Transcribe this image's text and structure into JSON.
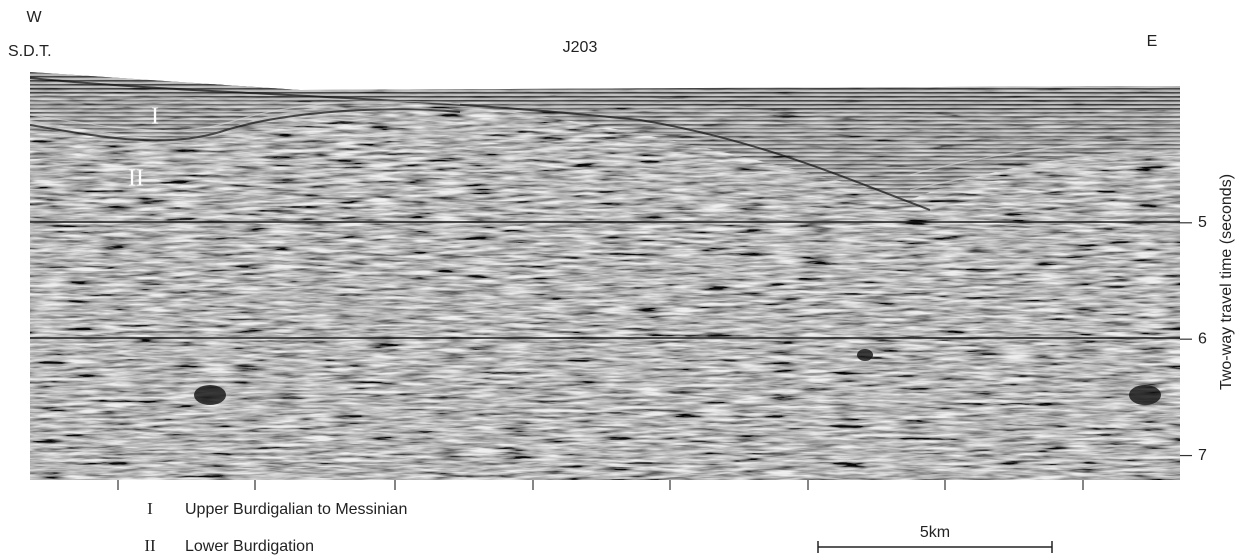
{
  "header": {
    "west": "W",
    "station": "S.D.T.",
    "line": "J203",
    "east": "E"
  },
  "axis": {
    "label": "Two-way travel time (seconds)",
    "ylim": [
      3.73,
      7.21
    ],
    "ticks": [
      5,
      6,
      7
    ]
  },
  "markers": [
    "I",
    "II"
  ],
  "legend": [
    {
      "symbol": "I",
      "text": "Upper Burdigalian to Messinian"
    },
    {
      "symbol": "II",
      "text": "Lower Burdigation"
    }
  ],
  "scale_bar": "5km"
}
